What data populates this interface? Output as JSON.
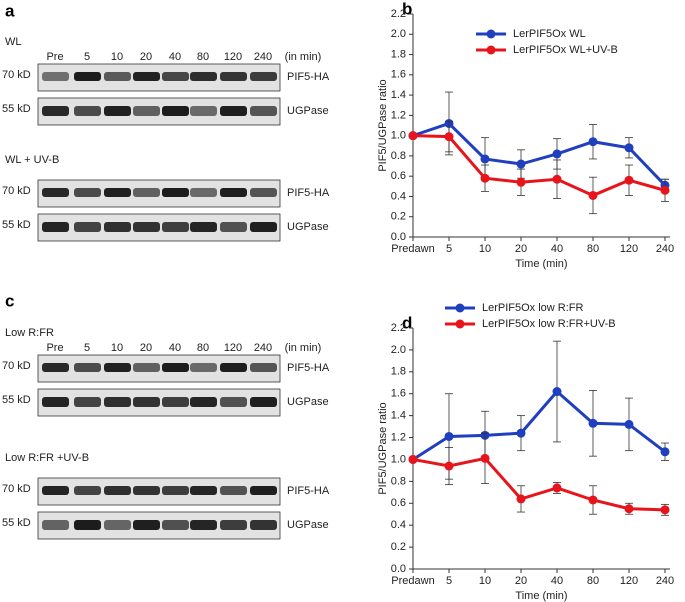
{
  "blots": [
    {
      "letter": "a",
      "lanes": [
        "Pre",
        "5",
        "10",
        "20",
        "40",
        "80",
        "120",
        "240"
      ],
      "unit": "(in min)",
      "groups": [
        {
          "condition": "WL",
          "rows": [
            {
              "size": "70 kD",
              "protein": "PIF5-HA"
            },
            {
              "size": "55 kD",
              "protein": "UGPase"
            }
          ]
        },
        {
          "condition": "WL + UV-B",
          "rows": [
            {
              "size": "70 kD",
              "protein": "PIF5-HA"
            },
            {
              "size": "55 kD",
              "protein": "UGPase"
            }
          ]
        }
      ]
    },
    {
      "letter": "c",
      "lanes": [
        "Pre",
        "5",
        "10",
        "20",
        "40",
        "80",
        "120",
        "240"
      ],
      "unit": "(in min)",
      "groups": [
        {
          "condition": "Low R:FR",
          "rows": [
            {
              "size": "70 kD",
              "protein": "PIF5-HA"
            },
            {
              "size": "55 kD",
              "protein": "UGPase"
            }
          ]
        },
        {
          "condition": "Low R:FR +UV-B",
          "rows": [
            {
              "size": "70 kD",
              "protein": "PIF5-HA"
            },
            {
              "size": "55 kD",
              "protein": "UGPase"
            }
          ]
        }
      ]
    }
  ],
  "chart_data": [
    {
      "type": "line",
      "panel": "b",
      "ylabel": "PIF5/UGPase ratio",
      "xlabel": "Time (min)",
      "categories": [
        "Predawn",
        "5",
        "10",
        "20",
        "40",
        "80",
        "120",
        "240"
      ],
      "ylim": [
        0,
        2.2
      ],
      "yticks": [
        {
          "value": 0,
          "label": "0.0"
        },
        0.2,
        0.4,
        0.6,
        0.8,
        {
          "value": 1,
          "label": "1.0"
        },
        1.2,
        1.4,
        1.6,
        1.8,
        {
          "value": 2,
          "label": "2.0"
        },
        2.2
      ],
      "series": [
        {
          "name": "LerPIF5Ox WL",
          "color": "#1f3fbf",
          "values": [
            1.0,
            1.12,
            0.77,
            0.72,
            0.82,
            0.94,
            0.88,
            0.51
          ],
          "errors": [
            0,
            0.31,
            0.21,
            0.14,
            0.15,
            0.17,
            0.1,
            0.06
          ]
        },
        {
          "name": "LerPIF5Ox WL+UV-B",
          "color": "#e8141c",
          "values": [
            1.0,
            0.99,
            0.58,
            0.54,
            0.57,
            0.41,
            0.56,
            0.46
          ],
          "errors": [
            0,
            0.15,
            0.13,
            0.13,
            0.19,
            0.18,
            0.15,
            0.11
          ]
        }
      ]
    },
    {
      "type": "line",
      "panel": "d",
      "ylabel": "PIF5/UGPase ratio",
      "xlabel": "Time (min)",
      "categories": [
        "Predawn",
        "5",
        "10",
        "20",
        "40",
        "80",
        "120",
        "240"
      ],
      "ylim": [
        0,
        2.2
      ],
      "yticks": [
        {
          "value": 0,
          "label": "0.0"
        },
        0.2,
        0.4,
        0.6,
        0.8,
        {
          "value": 1,
          "label": "1.0"
        },
        1.2,
        1.4,
        1.6,
        1.8,
        {
          "value": 2,
          "label": "2.0"
        },
        2.2
      ],
      "series": [
        {
          "name": "LerPIF5Ox low R:FR",
          "color": "#1f3fbf",
          "values": [
            1.0,
            1.21,
            1.22,
            1.24,
            1.62,
            1.33,
            1.32,
            1.07
          ],
          "errors": [
            0,
            0.39,
            0.22,
            0.16,
            0.46,
            0.3,
            0.24,
            0.08
          ]
        },
        {
          "name": "LerPIF5Ox low R:FR+UV-B",
          "color": "#e8141c",
          "values": [
            1.0,
            0.94,
            1.01,
            0.64,
            0.74,
            0.63,
            0.55,
            0.54
          ],
          "errors": [
            0,
            0.17,
            0.23,
            0.12,
            0.05,
            0.13,
            0.05,
            0.05
          ]
        }
      ]
    }
  ]
}
